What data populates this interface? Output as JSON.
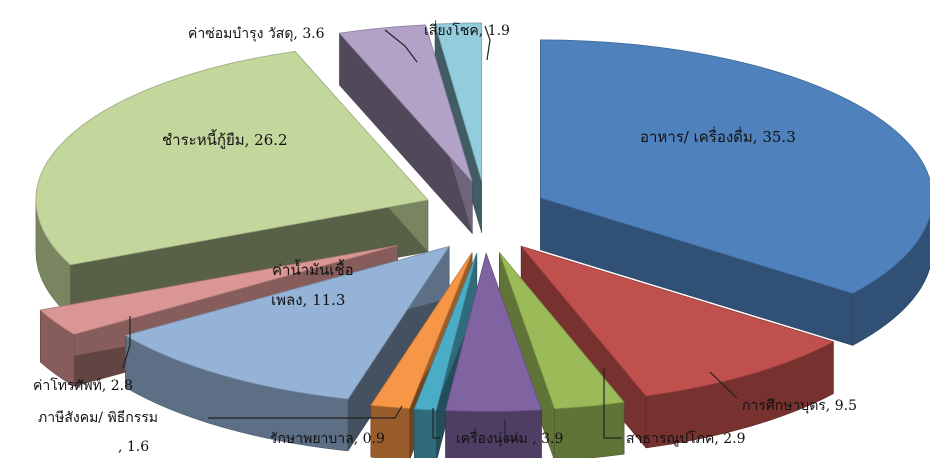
{
  "chart_data": {
    "type": "pie",
    "style": "3d-exploded",
    "unit": "percent",
    "slices": [
      {
        "label": "อาหาร/ เครื่องดื่ม",
        "value": 35.3,
        "color": "#4F81BD"
      },
      {
        "label": "การศึกษาบุตร",
        "value": 9.5,
        "color": "#C0504D"
      },
      {
        "label": "สาธารณูปโภค",
        "value": 2.9,
        "color": "#9BBB59"
      },
      {
        "label": "เครื่องนุ่งห่ม",
        "value": 3.9,
        "color": "#8064A2"
      },
      {
        "label": "รักษาพยาบาล",
        "value": 0.9,
        "color": "#4BACC6"
      },
      {
        "label": "ภาษีสังคม/ พิธีกรรม",
        "value": 1.6,
        "color": "#F79646"
      },
      {
        "label": "ค่าน้ำมันเชื้อเพลง",
        "value": 11.3,
        "color": "#95B3D7"
      },
      {
        "label": "ค่าโทรศัพท์",
        "value": 2.8,
        "color": "#D99694"
      },
      {
        "label": "ชำระหนี้กู้ยืม",
        "value": 26.2,
        "color": "#C3D69B"
      },
      {
        "label": "ค่าซ่อมบำรุง วัสดุ",
        "value": 3.6,
        "color": "#B3A2C7"
      },
      {
        "label": "เสี่ยงโชค",
        "value": 1.9,
        "color": "#93CDDD"
      }
    ],
    "label_texts": [
      "อาหาร/ เครื่องดื่ม, 35.3",
      "การศึกษาบุตร, 9.5",
      "สาธารณูปโภค, 2.9",
      "เครื่องนุ่งห่ม , 3.9",
      "รักษาพยาบาล, 0.9",
      "ภาษีสังคม/ พิธีกรรม",
      ", 1.6",
      "ค่าน้ำมันเชื้อ",
      "เพลง, 11.3",
      "ค่าโทรศัพท์, 2.8",
      "ชำระหนี้กู้ยืม, 26.2",
      "ค่าซ่อมบำรุง วัสดุ, 3.6",
      "เสี่ยงโชค, 1.9"
    ]
  }
}
